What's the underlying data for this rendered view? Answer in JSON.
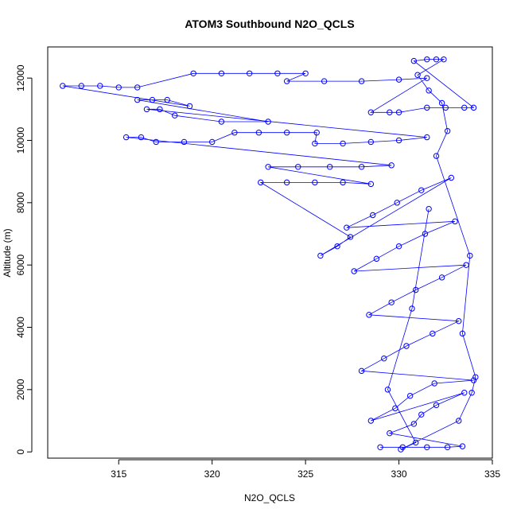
{
  "chart_data": {
    "type": "scatter",
    "title": "ATOM3 Southbound N2O_QCLS",
    "xlabel": "N2O_QCLS",
    "ylabel": "Altitude (m)",
    "xlim": [
      311.2,
      335.0
    ],
    "ylim": [
      -200,
      13000
    ],
    "xticks": [
      315,
      320,
      325,
      330,
      335
    ],
    "yticks": [
      0,
      2000,
      4000,
      6000,
      8000,
      10000,
      12000
    ],
    "grid": false,
    "legend": "none",
    "marker": "open-circle",
    "connected_by_lines": true,
    "series": [
      {
        "color": "#0000ff",
        "points": [
          [
            329.0,
            150
          ],
          [
            330.2,
            150
          ],
          [
            331.5,
            150
          ],
          [
            332.6,
            150
          ],
          [
            333.4,
            180
          ],
          [
            329.5,
            600
          ],
          [
            330.8,
            900
          ],
          [
            331.2,
            1200
          ],
          [
            332.0,
            1500
          ],
          [
            333.5,
            1900
          ],
          [
            328.5,
            1000
          ],
          [
            329.8,
            1400
          ],
          [
            330.6,
            1800
          ],
          [
            331.9,
            2200
          ],
          [
            334.0,
            2300
          ],
          [
            328.0,
            2600
          ],
          [
            329.2,
            3000
          ],
          [
            330.4,
            3400
          ],
          [
            331.8,
            3800
          ],
          [
            333.2,
            4200
          ],
          [
            328.4,
            4400
          ],
          [
            329.6,
            4800
          ],
          [
            330.9,
            5200
          ],
          [
            332.3,
            5600
          ],
          [
            333.6,
            6000
          ],
          [
            327.6,
            5800
          ],
          [
            328.8,
            6200
          ],
          [
            330.0,
            6600
          ],
          [
            331.4,
            7000
          ],
          [
            333.0,
            7400
          ],
          [
            327.2,
            7200
          ],
          [
            328.6,
            7600
          ],
          [
            329.9,
            8000
          ],
          [
            331.2,
            8400
          ],
          [
            332.8,
            8800
          ],
          [
            325.8,
            6300
          ],
          [
            326.7,
            6600
          ],
          [
            327.4,
            6900
          ],
          [
            322.6,
            8650
          ],
          [
            324.0,
            8650
          ],
          [
            325.5,
            8650
          ],
          [
            327.0,
            8650
          ],
          [
            328.5,
            8600
          ],
          [
            323.0,
            9150
          ],
          [
            324.6,
            9150
          ],
          [
            326.3,
            9150
          ],
          [
            328.0,
            9150
          ],
          [
            329.6,
            9200
          ],
          [
            315.4,
            10100
          ],
          [
            316.2,
            10100
          ],
          [
            317.0,
            9950
          ],
          [
            318.5,
            9950
          ],
          [
            320.0,
            9950
          ],
          [
            321.2,
            10250
          ],
          [
            322.5,
            10250
          ],
          [
            324.0,
            10250
          ],
          [
            325.6,
            10250
          ],
          [
            325.5,
            9900
          ],
          [
            327.0,
            9900
          ],
          [
            328.5,
            9950
          ],
          [
            330.0,
            10000
          ],
          [
            331.5,
            10100
          ],
          [
            316.5,
            11000
          ],
          [
            317.2,
            11000
          ],
          [
            318.0,
            10800
          ],
          [
            320.5,
            10600
          ],
          [
            323.0,
            10600
          ],
          [
            316.0,
            11300
          ],
          [
            316.8,
            11300
          ],
          [
            317.6,
            11300
          ],
          [
            318.8,
            11100
          ],
          [
            312.0,
            11750
          ],
          [
            313.0,
            11750
          ],
          [
            314.0,
            11750
          ],
          [
            315.0,
            11700
          ],
          [
            316.0,
            11700
          ],
          [
            319.0,
            12150
          ],
          [
            320.5,
            12150
          ],
          [
            322.0,
            12150
          ],
          [
            323.5,
            12150
          ],
          [
            325.0,
            12150
          ],
          [
            324.0,
            11900
          ],
          [
            326.0,
            11900
          ],
          [
            328.0,
            11900
          ],
          [
            330.0,
            11950
          ],
          [
            331.5,
            12000
          ],
          [
            328.5,
            10900
          ],
          [
            329.5,
            10900
          ],
          [
            330.0,
            10900
          ],
          [
            331.5,
            11050
          ],
          [
            332.5,
            11050
          ],
          [
            333.5,
            11050
          ],
          [
            334.0,
            11050
          ],
          [
            330.8,
            12550
          ],
          [
            331.5,
            12600
          ],
          [
            332.0,
            12600
          ],
          [
            332.4,
            12600
          ],
          [
            331.0,
            12100
          ],
          [
            331.6,
            11600
          ],
          [
            332.3,
            11200
          ],
          [
            332.6,
            10300
          ],
          [
            332.0,
            9500
          ],
          [
            333.8,
            6300
          ],
          [
            333.4,
            3800
          ],
          [
            334.1,
            2400
          ],
          [
            333.9,
            1900
          ],
          [
            333.2,
            1000
          ],
          [
            330.1,
            80
          ],
          [
            330.9,
            300
          ],
          [
            329.4,
            2000
          ],
          [
            330.7,
            4600
          ],
          [
            331.6,
            7800
          ]
        ]
      }
    ]
  }
}
